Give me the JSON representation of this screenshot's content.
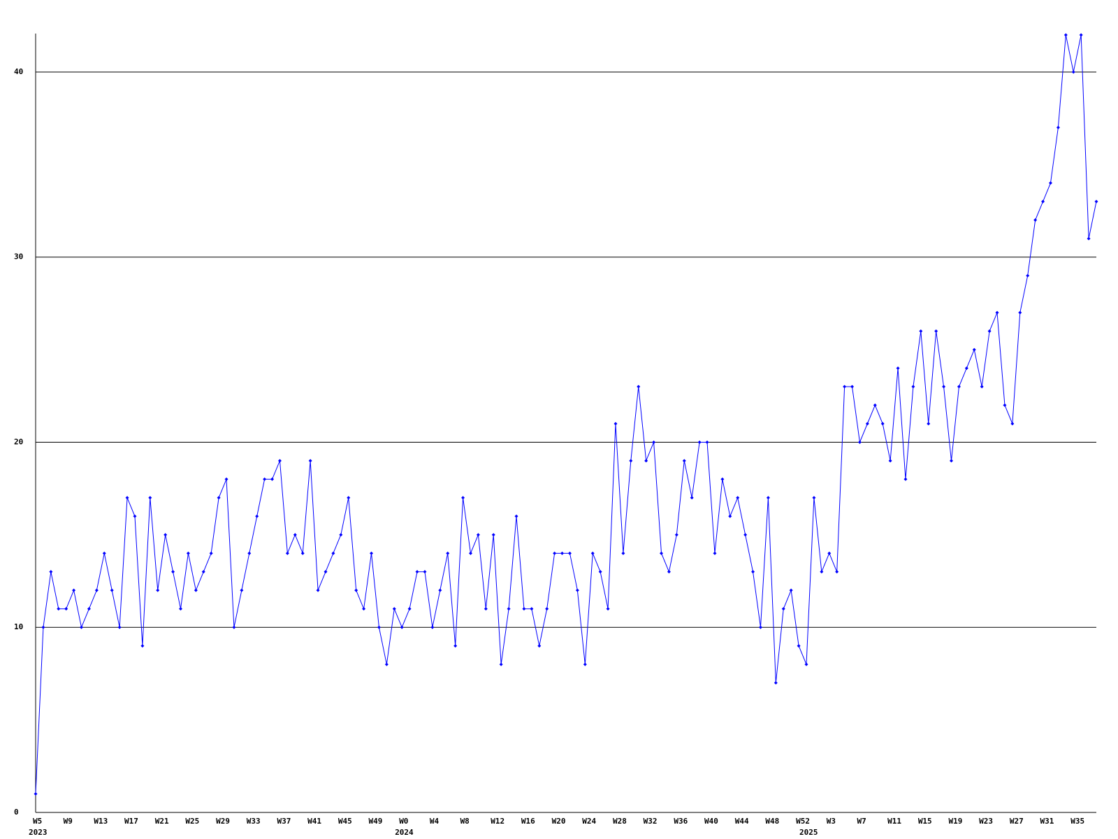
{
  "chart_data": {
    "type": "line",
    "categories": [
      "W5",
      null,
      null,
      null,
      "W9",
      null,
      null,
      null,
      "W13",
      null,
      null,
      null,
      "W17",
      null,
      null,
      null,
      "W21",
      null,
      null,
      null,
      "W25",
      null,
      null,
      null,
      "W29",
      null,
      null,
      null,
      "W33",
      null,
      null,
      null,
      "W37",
      null,
      null,
      null,
      "W41",
      null,
      null,
      null,
      "W45",
      null,
      null,
      null,
      "W49",
      null,
      null,
      null,
      "W0",
      null,
      null,
      null,
      "W4",
      null,
      null,
      null,
      "W8",
      null,
      null,
      null,
      "W12",
      null,
      null,
      null,
      "W16",
      null,
      null,
      null,
      "W20",
      null,
      null,
      null,
      "W24",
      null,
      null,
      null,
      "W28",
      null,
      null,
      null,
      "W32",
      null,
      null,
      null,
      "W36",
      null,
      null,
      null,
      "W40",
      null,
      null,
      null,
      "W44",
      null,
      null,
      null,
      "W48",
      null,
      null,
      null,
      "W52",
      null,
      null,
      null,
      "W3",
      null,
      null,
      null,
      "W7",
      null,
      null,
      null,
      "W11",
      null,
      null,
      null,
      "W15",
      null,
      null,
      null,
      "W19",
      null,
      null,
      null,
      "W23",
      null,
      null,
      null,
      "W27",
      null,
      null,
      null,
      "W31",
      null,
      null,
      null,
      "W35",
      null,
      null,
      null
    ],
    "years": [
      "2023",
      null,
      null,
      null,
      null,
      null,
      null,
      null,
      null,
      null,
      null,
      null,
      null,
      null,
      null,
      null,
      null,
      null,
      null,
      null,
      null,
      null,
      null,
      null,
      null,
      null,
      null,
      null,
      null,
      null,
      null,
      null,
      null,
      null,
      null,
      null,
      null,
      null,
      null,
      null,
      null,
      null,
      null,
      null,
      null,
      null,
      null,
      null,
      "2024",
      null,
      null,
      null,
      null,
      null,
      null,
      null,
      null,
      null,
      null,
      null,
      null,
      null,
      null,
      null,
      null,
      null,
      null,
      null,
      null,
      null,
      null,
      null,
      null,
      null,
      null,
      null,
      null,
      null,
      null,
      null,
      null,
      null,
      null,
      null,
      null,
      null,
      null,
      null,
      null,
      null,
      null,
      null,
      null,
      null,
      null,
      null,
      null,
      null,
      null,
      null,
      null,
      "2025",
      null,
      null,
      null,
      null,
      null,
      null,
      null,
      null,
      null,
      null,
      null,
      null,
      null,
      null,
      null,
      null,
      null,
      null,
      null,
      null,
      null,
      null,
      null,
      null,
      null,
      null,
      null,
      null,
      null,
      null,
      null,
      null,
      null,
      null,
      null,
      null,
      null
    ],
    "series": [
      {
        "color": "#0000ff",
        "values": [
          1,
          10,
          13,
          11,
          11,
          12,
          10,
          11,
          12,
          14,
          12,
          10,
          17,
          16,
          9,
          17,
          12,
          15,
          13,
          11,
          14,
          12,
          13,
          14,
          17,
          18,
          10,
          12,
          14,
          16,
          18,
          18,
          19,
          14,
          15,
          14,
          19,
          12,
          13,
          14,
          15,
          17,
          12,
          11,
          14,
          10,
          8,
          11,
          10,
          11,
          13,
          13,
          10,
          12,
          14,
          9,
          17,
          14,
          15,
          11,
          15,
          8,
          11,
          16,
          11,
          11,
          9,
          11,
          14,
          14,
          14,
          12,
          8,
          14,
          13,
          11,
          21,
          14,
          19,
          23,
          19,
          20,
          14,
          13,
          15,
          19,
          17,
          20,
          20,
          14,
          18,
          16,
          17,
          15,
          13,
          10,
          17,
          7,
          11,
          12,
          9,
          8,
          17,
          13,
          14,
          13,
          23,
          23,
          20,
          21,
          22,
          21,
          19,
          24,
          18,
          23,
          26,
          21,
          26,
          23,
          19,
          23,
          24,
          25,
          23,
          26,
          27,
          22,
          21,
          27,
          29,
          32,
          33,
          34,
          37,
          42,
          40,
          42,
          31,
          33
        ]
      }
    ],
    "ylim": [
      0,
      42
    ],
    "yticks": [
      0,
      10,
      20,
      30,
      40
    ],
    "grid": true
  }
}
